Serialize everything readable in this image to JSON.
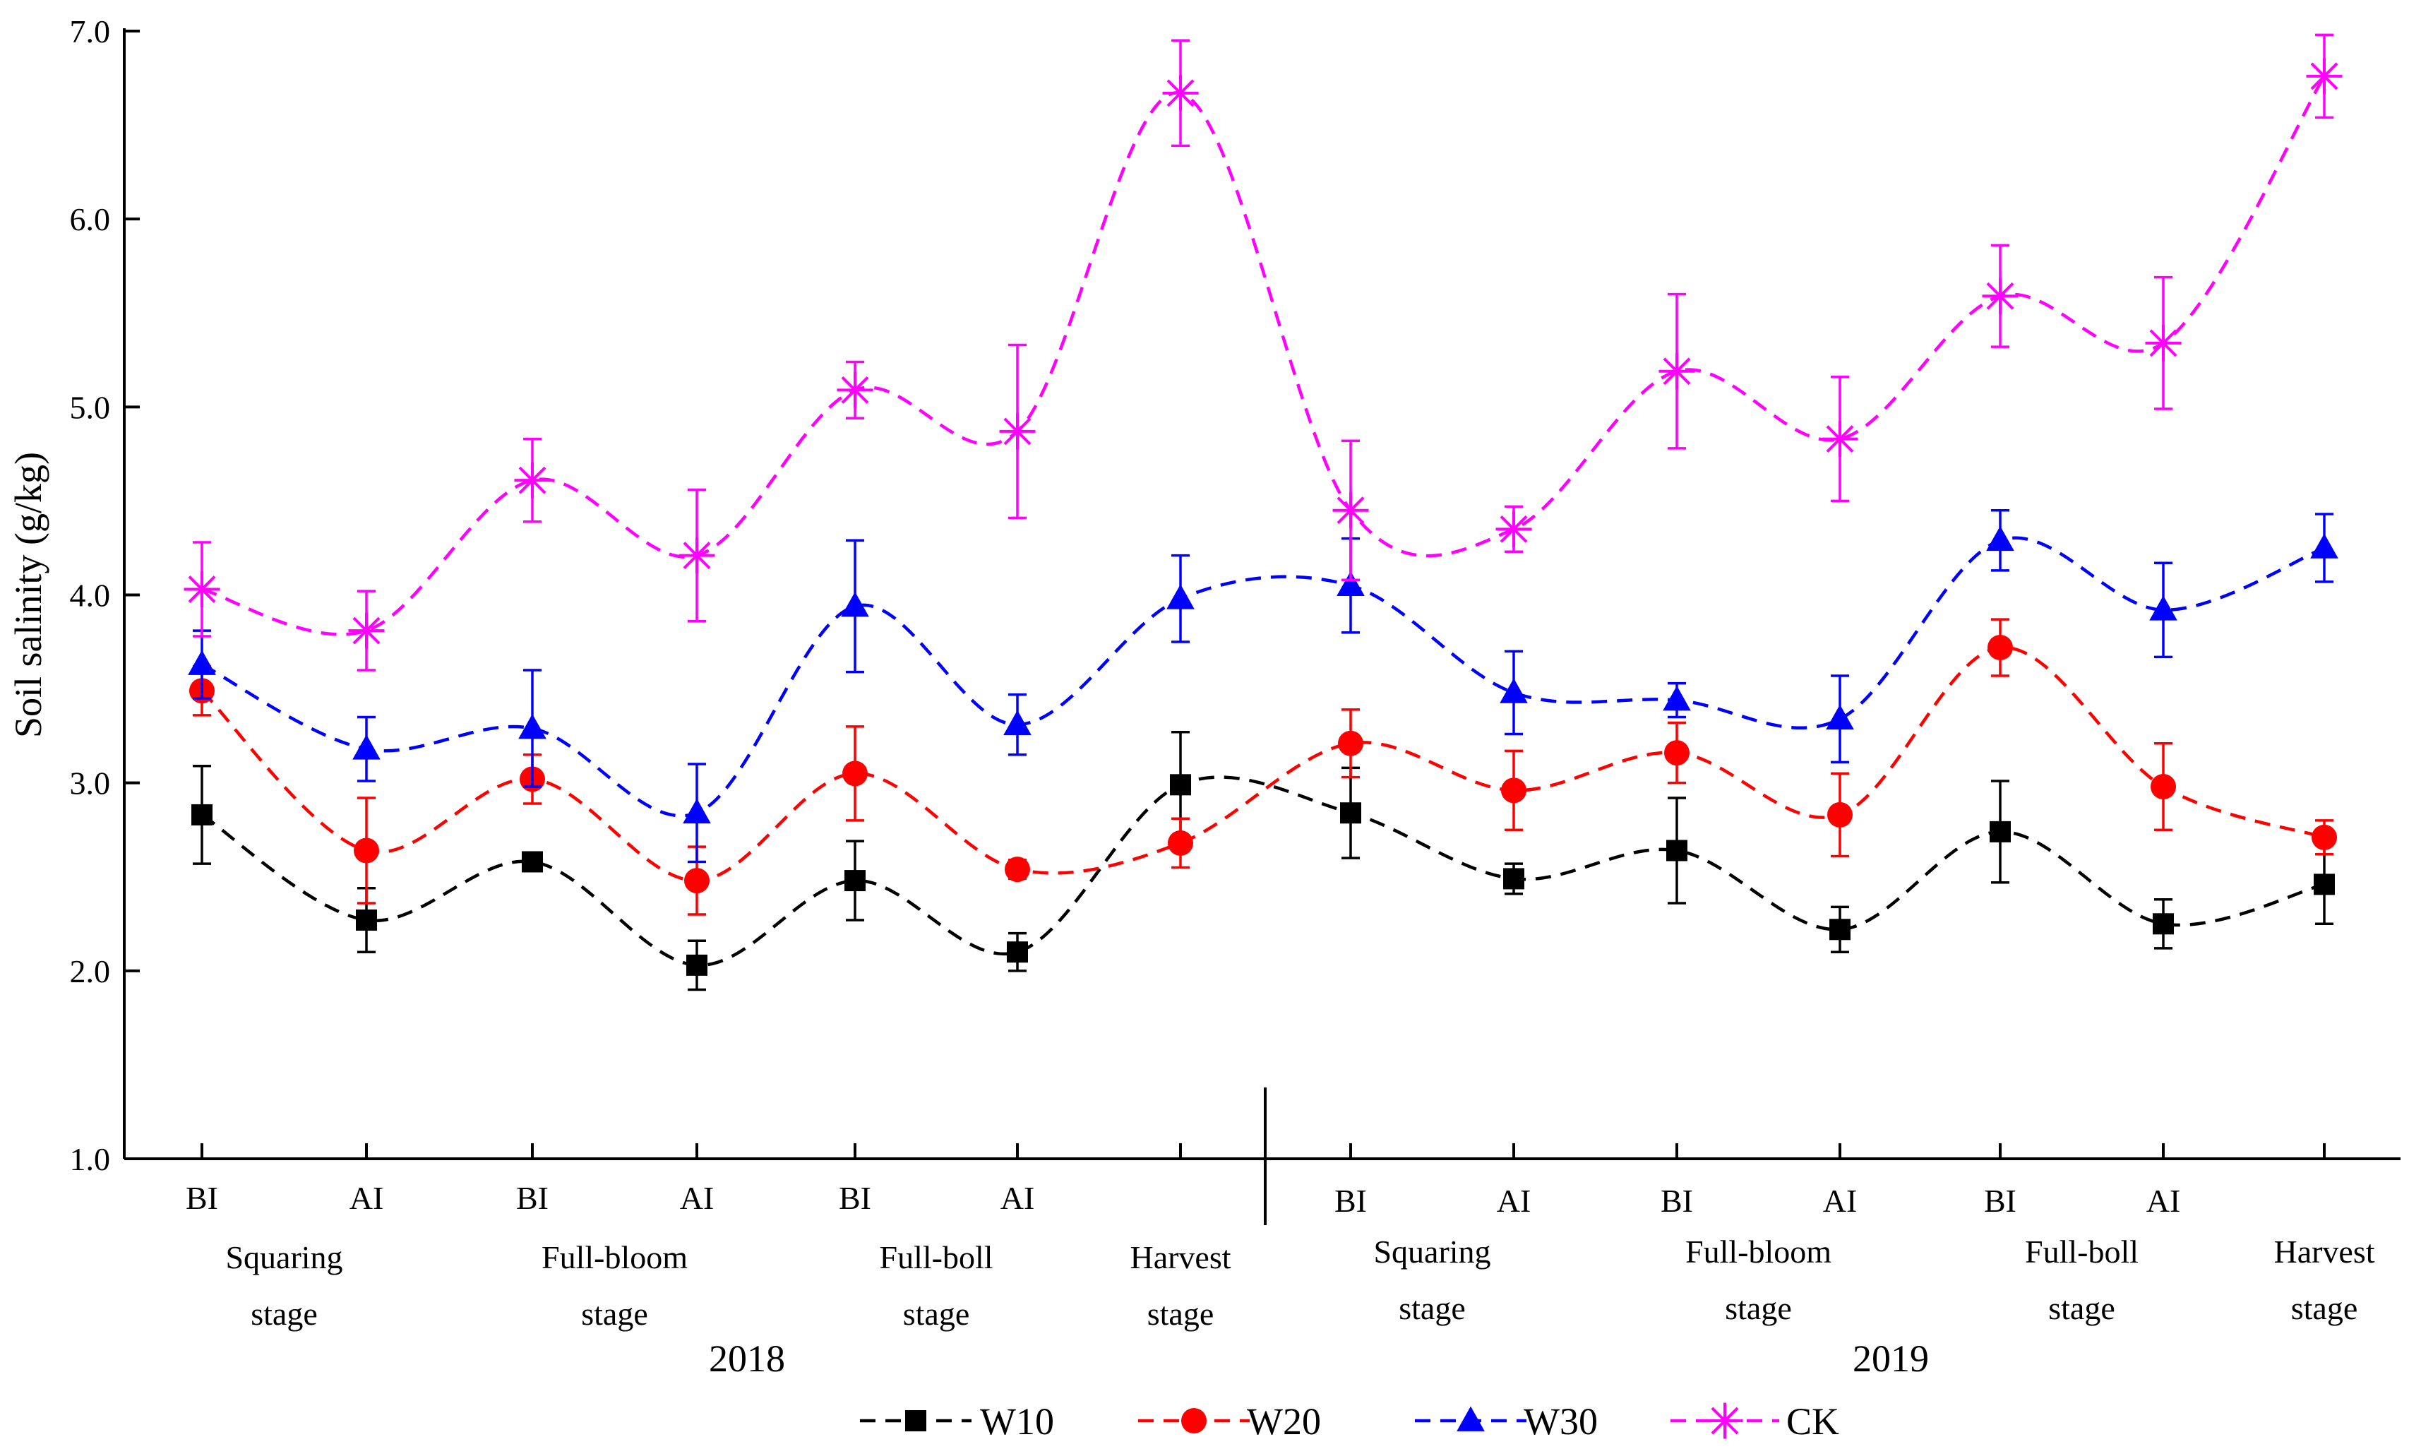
{
  "chart_data": {
    "type": "line",
    "title": "",
    "ylabel": "Soil salinity (g/kg)",
    "xlabel": "",
    "ylim": [
      1.0,
      7.0
    ],
    "yticks": [
      "1.0",
      "2.0",
      "3.0",
      "4.0",
      "5.0",
      "6.0",
      "7.0"
    ],
    "points": [
      {
        "sub": "BI",
        "stage": "Squaring stage",
        "year": "2018"
      },
      {
        "sub": "AI",
        "stage": "Squaring stage",
        "year": "2018"
      },
      {
        "sub": "BI",
        "stage": "Full-bloom stage",
        "year": "2018"
      },
      {
        "sub": "AI",
        "stage": "Full-bloom stage",
        "year": "2018"
      },
      {
        "sub": "BI",
        "stage": "Full-boll stage",
        "year": "2018"
      },
      {
        "sub": "AI",
        "stage": "Full-boll stage",
        "year": "2018"
      },
      {
        "sub": "",
        "stage": "Harvest stage",
        "year": "2018"
      },
      {
        "sub": "BI",
        "stage": "Squaring stage",
        "year": "2019"
      },
      {
        "sub": "AI",
        "stage": "Squaring stage",
        "year": "2019"
      },
      {
        "sub": "BI",
        "stage": "Full-bloom stage",
        "year": "2019"
      },
      {
        "sub": "AI",
        "stage": "Full-bloom stage",
        "year": "2019"
      },
      {
        "sub": "BI",
        "stage": "Full-boll stage",
        "year": "2019"
      },
      {
        "sub": "AI",
        "stage": "Full-boll stage",
        "year": "2019"
      },
      {
        "sub": "",
        "stage": "Harvest stage",
        "year": "2019"
      }
    ],
    "stage_groups": [
      {
        "line1": "Squaring",
        "line2": "stage",
        "from": 0,
        "to": 1
      },
      {
        "line1": "Full-bloom",
        "line2": "stage",
        "from": 2,
        "to": 3
      },
      {
        "line1": "Full-boll",
        "line2": "stage",
        "from": 4,
        "to": 5
      },
      {
        "line1": "Harvest",
        "line2": "stage",
        "from": 6,
        "to": 6
      },
      {
        "line1": "Squaring",
        "line2": "stage",
        "from": 7,
        "to": 8
      },
      {
        "line1": "Full-bloom",
        "line2": "stage",
        "from": 9,
        "to": 10
      },
      {
        "line1": "Full-boll",
        "line2": "stage",
        "from": 11,
        "to": 12
      },
      {
        "line1": "Harvest",
        "line2": "stage",
        "from": 13,
        "to": 13
      }
    ],
    "years": [
      {
        "label": "2018",
        "from": 0,
        "to": 6
      },
      {
        "label": "2019",
        "from": 7,
        "to": 13
      }
    ],
    "series": [
      {
        "name": "W10",
        "color": "#000000",
        "marker": "square",
        "values": [
          2.83,
          2.27,
          2.58,
          2.03,
          2.48,
          2.1,
          2.99,
          2.84,
          2.49,
          2.64,
          2.22,
          2.74,
          2.25,
          2.46
        ],
        "errors": [
          0.26,
          0.17,
          0.03,
          0.13,
          0.21,
          0.1,
          0.28,
          0.24,
          0.08,
          0.28,
          0.12,
          0.27,
          0.13,
          0.21
        ]
      },
      {
        "name": "W20",
        "color": "#ff0000",
        "marker": "circle",
        "values": [
          3.49,
          2.64,
          3.02,
          2.48,
          3.05,
          2.54,
          2.68,
          3.21,
          2.96,
          3.16,
          2.83,
          3.72,
          2.98,
          2.71
        ],
        "errors": [
          0.13,
          0.28,
          0.13,
          0.18,
          0.25,
          0.05,
          0.13,
          0.18,
          0.21,
          0.16,
          0.22,
          0.15,
          0.23,
          0.09
        ]
      },
      {
        "name": "W30",
        "color": "#0000ff",
        "marker": "triangle",
        "values": [
          3.63,
          3.18,
          3.29,
          2.84,
          3.94,
          3.31,
          3.98,
          4.05,
          3.48,
          3.44,
          3.34,
          4.29,
          3.92,
          4.25
        ],
        "errors": [
          0.18,
          0.17,
          0.31,
          0.26,
          0.35,
          0.16,
          0.23,
          0.25,
          0.22,
          0.09,
          0.23,
          0.16,
          0.25,
          0.18
        ]
      },
      {
        "name": "CK",
        "color": "#ff00ff",
        "marker": "asterisk",
        "values": [
          4.03,
          3.81,
          4.61,
          4.21,
          5.09,
          4.87,
          6.67,
          4.45,
          4.35,
          5.19,
          4.83,
          5.59,
          5.34,
          6.76
        ],
        "errors": [
          0.25,
          0.21,
          0.22,
          0.35,
          0.15,
          0.46,
          0.28,
          0.37,
          0.12,
          0.41,
          0.33,
          0.27,
          0.35,
          0.22
        ]
      }
    ],
    "legend": "bottom-center"
  }
}
